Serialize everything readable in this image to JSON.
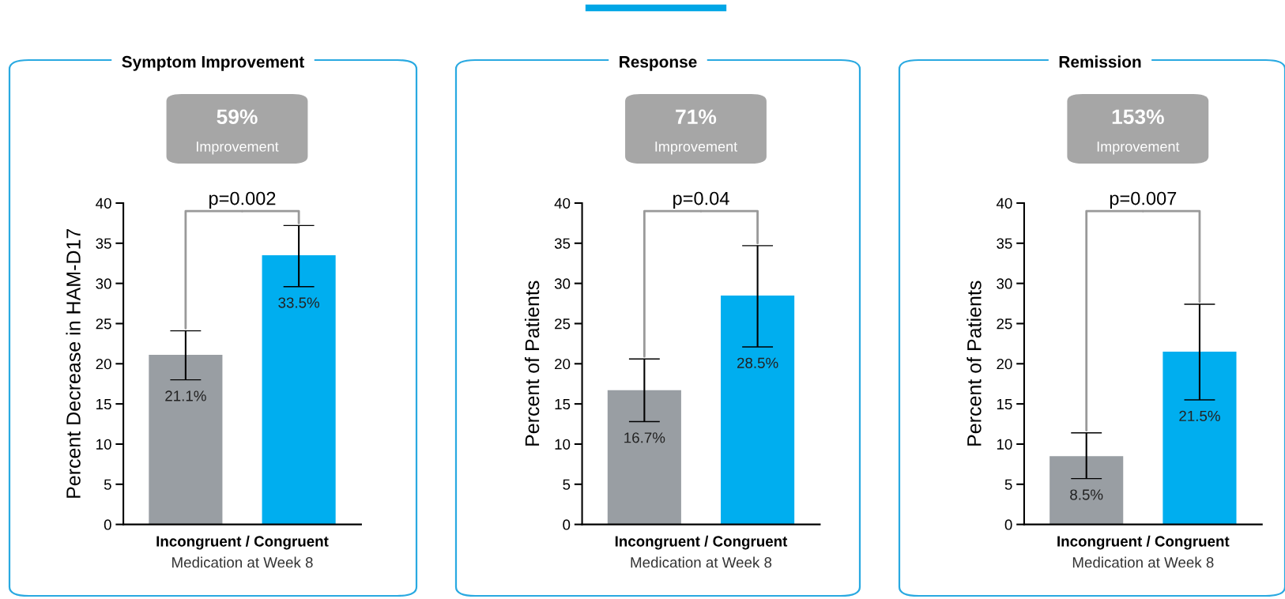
{
  "chart_data": [
    {
      "type": "bar",
      "title": "Symptom Improvement",
      "ylabel": "Percent Decrease in HAM-D17",
      "xlabel": "Medication at Week 8",
      "categories": [
        null,
        null
      ],
      "values": [
        21.1,
        33.5
      ],
      "colors": [
        "#999ea3",
        "#00aeef"
      ],
      "errors": [
        [
          18.0,
          24.1
        ],
        [
          29.6,
          37.2
        ]
      ],
      "value_labels": [
        "21.1%",
        "33.5%"
      ],
      "ylim": [
        0,
        40
      ],
      "yticks": [
        0,
        5,
        10,
        15,
        20,
        25,
        30,
        35,
        40
      ],
      "grid": false,
      "legend": false,
      "annotations": [
        "59%",
        "Improvement",
        "p=0.002",
        "Incongruent / Congruent"
      ]
    },
    {
      "type": "bar",
      "title": "Response",
      "ylabel": "Percent of Patients",
      "xlabel": "Medication at Week 8",
      "categories": [
        null,
        null
      ],
      "values": [
        16.7,
        28.5
      ],
      "colors": [
        "#999ea3",
        "#00aeef"
      ],
      "errors": [
        [
          12.8,
          20.6
        ],
        [
          22.1,
          34.7
        ]
      ],
      "value_labels": [
        "16.7%",
        "28.5%"
      ],
      "ylim": [
        0,
        40
      ],
      "yticks": [
        0,
        5,
        10,
        15,
        20,
        25,
        30,
        35,
        40
      ],
      "grid": false,
      "legend": false,
      "annotations": [
        "71%",
        "Improvement",
        "p=0.04",
        "Incongruent / Congruent"
      ]
    },
    {
      "type": "bar",
      "title": "Remission",
      "ylabel": "Percent of Patients",
      "xlabel": "Medication at Week 8",
      "categories": [
        null,
        null
      ],
      "values": [
        8.5,
        21.5
      ],
      "colors": [
        "#999ea3",
        "#00aeef"
      ],
      "errors": [
        [
          5.7,
          11.4
        ],
        [
          15.5,
          27.4
        ]
      ],
      "value_labels": [
        "8.5%",
        "21.5%"
      ],
      "ylim": [
        0,
        40
      ],
      "yticks": [
        0,
        5,
        10,
        15,
        20,
        25,
        30,
        35,
        40
      ],
      "grid": false,
      "legend": false,
      "annotations": [
        "153%",
        "Improvement",
        "p=0.007",
        "Incongruent / Congruent"
      ]
    }
  ]
}
